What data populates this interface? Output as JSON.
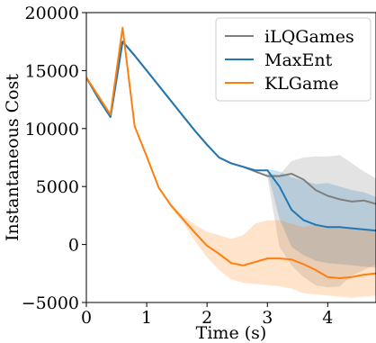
{
  "chart_data": {
    "type": "line",
    "title": "",
    "xlabel": "Time (s)",
    "ylabel": "Instantaneous Cost",
    "xlim": [
      0,
      4.8
    ],
    "ylim": [
      -5000,
      20000
    ],
    "xticks": [
      0,
      1,
      2,
      3,
      4
    ],
    "yticks": [
      -5000,
      0,
      5000,
      10000,
      15000,
      20000
    ],
    "ytick_labels": [
      "−5000",
      "0",
      "5000",
      "10000",
      "15000",
      "20000"
    ],
    "legend_position": "top-right",
    "grid": false,
    "series": [
      {
        "name": "iLQGames",
        "color": "#7f7f7f",
        "x": [
          0,
          0.2,
          0.4,
          0.6,
          0.8,
          1.0,
          1.2,
          1.4,
          1.6,
          1.8,
          2.0,
          2.2,
          2.4,
          2.6,
          2.8,
          3.0,
          3.2,
          3.4,
          3.6,
          3.8,
          4.0,
          4.2,
          4.4,
          4.6,
          4.8
        ],
        "y": [
          14400,
          12600,
          11000,
          17500,
          16300,
          15000,
          13700,
          12400,
          11100,
          9800,
          8600,
          7500,
          7000,
          6700,
          6300,
          5900,
          5900,
          6100,
          5600,
          4700,
          4200,
          3900,
          3700,
          3800,
          3500
        ],
        "band_upper": [
          14400,
          12600,
          11000,
          17500,
          16300,
          15000,
          13700,
          12400,
          11100,
          9800,
          8600,
          7500,
          7000,
          6700,
          6300,
          6100,
          6000,
          7200,
          7500,
          7600,
          7600,
          7700,
          7000,
          6300,
          5700
        ],
        "band_lower": [
          14400,
          12600,
          11000,
          17500,
          16300,
          15000,
          13700,
          12400,
          11100,
          9800,
          8600,
          7500,
          7000,
          6700,
          6300,
          5800,
          -200,
          -1800,
          -2800,
          -3500,
          -3700,
          -3600,
          -2700,
          -2200,
          -1700
        ]
      },
      {
        "name": "MaxEnt",
        "color": "#1f77b4",
        "x": [
          0,
          0.2,
          0.4,
          0.6,
          0.8,
          1.0,
          1.2,
          1.4,
          1.6,
          1.8,
          2.0,
          2.2,
          2.4,
          2.6,
          2.8,
          3.0,
          3.2,
          3.4,
          3.6,
          3.8,
          4.0,
          4.2,
          4.4,
          4.6,
          4.8
        ],
        "y": [
          14400,
          12600,
          11000,
          17500,
          16300,
          15000,
          13700,
          12400,
          11100,
          9800,
          8600,
          7500,
          7000,
          6700,
          6400,
          6400,
          5000,
          3000,
          2100,
          1700,
          1500,
          1500,
          1400,
          1300,
          1200
        ],
        "band_upper": [
          14400,
          12600,
          11000,
          17500,
          16300,
          15000,
          13700,
          12400,
          11100,
          9800,
          8600,
          7500,
          7000,
          6700,
          6400,
          6500,
          6300,
          5800,
          5500,
          5200,
          5300,
          5000,
          4700,
          4500,
          4100
        ],
        "band_lower": [
          14400,
          12600,
          11000,
          17500,
          16300,
          15000,
          13700,
          12400,
          11100,
          9800,
          8600,
          7500,
          7000,
          6700,
          6400,
          6300,
          2200,
          -200,
          -900,
          -1400,
          -1600,
          -1700,
          -1800,
          -1900,
          -2000
        ]
      },
      {
        "name": "KLGame",
        "color": "#ff7f0e",
        "x": [
          0,
          0.2,
          0.4,
          0.6,
          0.8,
          1.0,
          1.2,
          1.4,
          1.6,
          1.8,
          2.0,
          2.2,
          2.4,
          2.6,
          2.8,
          3.0,
          3.2,
          3.4,
          3.6,
          3.8,
          4.0,
          4.2,
          4.4,
          4.6,
          4.8
        ],
        "y": [
          14400,
          12800,
          11200,
          18700,
          10200,
          7600,
          4900,
          3400,
          2200,
          1000,
          -100,
          -800,
          -1600,
          -1800,
          -1500,
          -1200,
          -1200,
          -1300,
          -1700,
          -2200,
          -2800,
          -2900,
          -2800,
          -2600,
          -2500
        ],
        "band_upper": [
          14400,
          12800,
          11200,
          18700,
          10200,
          7600,
          4900,
          3500,
          2500,
          1700,
          1100,
          800,
          500,
          800,
          1800,
          2100,
          2100,
          1800,
          1500,
          1700,
          1600,
          1400,
          1300,
          1200,
          1200
        ],
        "band_lower": [
          14400,
          12800,
          11200,
          18700,
          10200,
          7600,
          4900,
          3200,
          1900,
          300,
          -1100,
          -2200,
          -3000,
          -3300,
          -3400,
          -3500,
          -3600,
          -3800,
          -4200,
          -4300,
          -4400,
          -4500,
          -4600,
          -4500,
          -4400
        ]
      }
    ]
  }
}
